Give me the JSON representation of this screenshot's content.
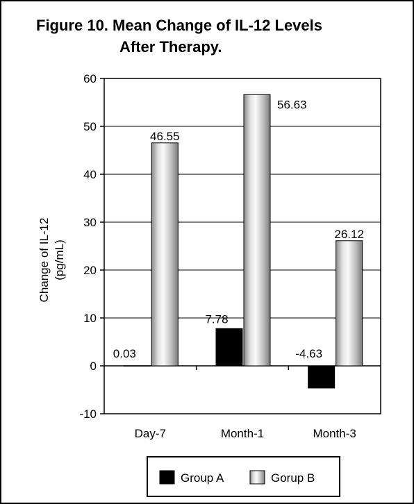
{
  "chart_data": {
    "type": "bar",
    "title_lines": [
      "Figure 10. Mean Change of IL-12 Levels",
      "After Therapy."
    ],
    "ylabel_lines": [
      "Change of IL-12",
      "(pg/mL)"
    ],
    "xlabel": "",
    "categories": [
      "Day-7",
      "Month-1",
      "Month-3"
    ],
    "series": [
      {
        "name": "Group A",
        "values": [
          0.03,
          7.78,
          -4.63
        ],
        "labels": [
          "0.03",
          "7.78",
          "-4.63"
        ],
        "color": "#000000"
      },
      {
        "name": "Gorup B",
        "values": [
          46.55,
          56.63,
          26.12
        ],
        "labels": [
          "46.55",
          "56.63",
          "26.12"
        ],
        "color": "#c8c8c8"
      }
    ],
    "ylim": [
      -10,
      60
    ],
    "yticks": [
      -10,
      0,
      10,
      20,
      30,
      40,
      50,
      60
    ],
    "grid": true,
    "legend_position": "bottom"
  }
}
